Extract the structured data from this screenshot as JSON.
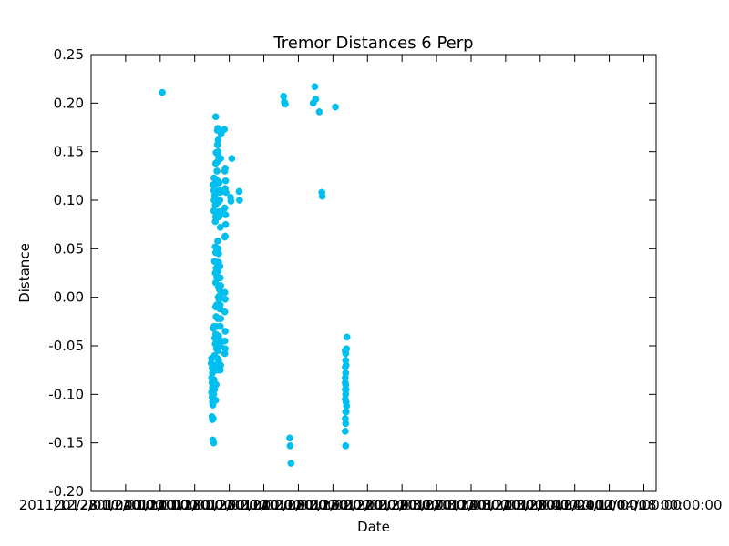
{
  "chart_data": {
    "type": "scatter",
    "title": "Tremor Distances 6 Perp",
    "xlabel": "Date",
    "ylabel": "Distance",
    "ylim": [
      -0.2,
      0.25
    ],
    "yticks": [
      "-0.20",
      "-0.15",
      "-0.10",
      "-0.05",
      "0.00",
      "0.05",
      "0.10",
      "0.15",
      "0.20",
      "0.25"
    ],
    "xticks": [
      "2011/12/28 00:00:00",
      "2012/01/04 00:00:00",
      "2012/01/11 00:00:00",
      "2012/01/18 00:00:00",
      "2012/01/25 00:00:00",
      "2012/02/01 00:00:00",
      "2012/02/08 00:00:00",
      "2012/02/15 00:00:00",
      "2012/02/22 00:00:00",
      "2012/02/29 00:00:00",
      "2012/03/07 00:00:00",
      "2012/03/14 00:00:00",
      "2012/03/21 00:00:00",
      "2012/03/28 00:00:00",
      "2012/04/04 00:00:00",
      "2012/04/11 00:00:00",
      "2012/04/18 00:00:00"
    ],
    "marker_color": "#00bfef",
    "grid": false,
    "points": [
      [
        "2012/01/11 10:00",
        0.211
      ],
      [
        "2012/01/21 12:00",
        -0.123
      ],
      [
        "2012/01/21 14:00",
        -0.126
      ],
      [
        "2012/01/21 18:00",
        -0.125
      ],
      [
        "2012/01/21 16:00",
        -0.147
      ],
      [
        "2012/01/21 20:00",
        -0.15
      ],
      [
        "2012/01/21 08:00",
        -0.068
      ],
      [
        "2012/01/21 10:00",
        -0.063
      ],
      [
        "2012/01/21 12:00",
        -0.073
      ],
      [
        "2012/01/21 14:00",
        -0.078
      ],
      [
        "2012/01/21 10:00",
        -0.083
      ],
      [
        "2012/01/21 12:00",
        -0.088
      ],
      [
        "2012/01/21 14:00",
        -0.093
      ],
      [
        "2012/01/21 10:00",
        -0.098
      ],
      [
        "2012/01/21 12:00",
        -0.103
      ],
      [
        "2012/01/21 14:00",
        -0.108
      ],
      [
        "2012/01/21 16:00",
        -0.111
      ],
      [
        "2012/01/21 20:00",
        -0.1
      ],
      [
        "2012/01/22 00:00",
        -0.095
      ],
      [
        "2012/01/21 22:00",
        -0.085
      ],
      [
        "2012/01/22 02:00",
        -0.07
      ],
      [
        "2012/01/22 00:00",
        -0.06
      ],
      [
        "2012/01/21 18:00",
        -0.032
      ],
      [
        "2012/01/21 22:00",
        -0.03
      ],
      [
        "2012/01/22 02:00",
        -0.042
      ],
      [
        "2012/01/22 04:00",
        -0.048
      ],
      [
        "2012/01/22 06:00",
        -0.106
      ],
      [
        "2012/01/22 08:00",
        -0.09
      ],
      [
        "2012/01/22 10:00",
        -0.053
      ],
      [
        "2012/01/22 06:00",
        -0.038
      ],
      [
        "2012/01/22 00:00",
        0.037
      ],
      [
        "2012/01/22 06:00",
        0.046
      ],
      [
        "2012/01/22 04:00",
        0.052
      ],
      [
        "2012/01/22 04:00",
        0.025
      ],
      [
        "2012/01/22 06:00",
        0.015
      ],
      [
        "2012/01/22 08:00",
        0.03
      ],
      [
        "2012/01/22 06:00",
        -0.01
      ],
      [
        "2012/01/22 10:00",
        -0.008
      ],
      [
        "2012/01/22 08:00",
        -0.02
      ],
      [
        "2012/01/22 10:00",
        -0.03
      ],
      [
        "2012/01/22 12:00",
        0.02
      ],
      [
        "2012/01/21 20:00",
        0.089
      ],
      [
        "2012/01/21 22:00",
        0.1
      ],
      [
        "2012/01/21 20:00",
        0.11
      ],
      [
        "2012/01/21 18:00",
        0.116
      ],
      [
        "2012/01/21 22:00",
        0.123
      ],
      [
        "2012/01/22 02:00",
        0.105
      ],
      [
        "2012/01/22 04:00",
        0.078
      ],
      [
        "2012/01/22 06:00",
        0.083
      ],
      [
        "2012/01/22 04:00",
        0.095
      ],
      [
        "2012/01/22 08:00",
        0.117
      ],
      [
        "2012/01/22 04:00",
        0.122
      ],
      [
        "2012/01/22 06:00",
        0.138
      ],
      [
        "2012/01/22 08:00",
        0.149
      ],
      [
        "2012/01/22 12:00",
        0.13
      ],
      [
        "2012/01/22 06:00",
        0.186
      ],
      [
        "2012/01/22 14:00",
        0.172
      ],
      [
        "2012/01/22 16:00",
        0.174
      ],
      [
        "2012/01/22 18:00",
        0.162
      ],
      [
        "2012/01/22 14:00",
        0.157
      ],
      [
        "2012/01/22 18:00",
        0.15
      ],
      [
        "2012/01/22 20:00",
        0.145
      ],
      [
        "2012/01/22 16:00",
        0.14
      ],
      [
        "2012/01/22 14:00",
        0.12
      ],
      [
        "2012/01/22 16:00",
        0.11
      ],
      [
        "2012/01/22 12:00",
        0.1
      ],
      [
        "2012/01/22 20:00",
        0.098
      ],
      [
        "2012/01/22 22:00",
        0.118
      ],
      [
        "2012/01/22 18:00",
        0.088
      ],
      [
        "2012/01/22 22:00",
        0.083
      ],
      [
        "2012/01/22 16:00",
        0.058
      ],
      [
        "2012/01/22 18:00",
        0.05
      ],
      [
        "2012/01/22 20:00",
        0.045
      ],
      [
        "2012/01/22 14:00",
        0.036
      ],
      [
        "2012/01/22 20:00",
        0.036
      ],
      [
        "2012/01/22 16:00",
        0.02
      ],
      [
        "2012/01/22 18:00",
        0.027
      ],
      [
        "2012/01/22 20:00",
        0.01
      ],
      [
        "2012/01/22 18:00",
        0.0
      ],
      [
        "2012/01/22 22:00",
        -0.002
      ],
      [
        "2012/01/23 00:00",
        0.008
      ],
      [
        "2012/01/22 16:00",
        -0.022
      ],
      [
        "2012/01/22 14:00",
        -0.04
      ],
      [
        "2012/01/22 18:00",
        -0.055
      ],
      [
        "2012/01/22 20:00",
        -0.04
      ],
      [
        "2012/01/22 14:00",
        -0.063
      ],
      [
        "2012/01/22 16:00",
        -0.075
      ],
      [
        "2012/01/22 20:00",
        -0.065
      ],
      [
        "2012/01/23 02:00",
        0.1
      ],
      [
        "2012/01/23 04:00",
        0.108
      ],
      [
        "2012/01/23 06:00",
        0.11
      ],
      [
        "2012/01/23 08:00",
        0.088
      ],
      [
        "2012/01/23 04:00",
        0.072
      ],
      [
        "2012/01/23 06:00",
        0.143
      ],
      [
        "2012/01/23 08:00",
        0.168
      ],
      [
        "2012/01/23 02:00",
        0.032
      ],
      [
        "2012/01/23 04:00",
        0.02
      ],
      [
        "2012/01/23 06:00",
        0.012
      ],
      [
        "2012/01/23 02:00",
        0.002
      ],
      [
        "2012/01/23 04:00",
        -0.008
      ],
      [
        "2012/01/23 02:00",
        -0.012
      ],
      [
        "2012/01/23 06:00",
        -0.022
      ],
      [
        "2012/01/23 04:00",
        -0.03
      ],
      [
        "2012/01/23 06:00",
        -0.045
      ],
      [
        "2012/01/23 04:00",
        -0.05
      ],
      [
        "2012/01/23 06:00",
        -0.07
      ],
      [
        "2012/01/23 04:00",
        -0.075
      ],
      [
        "2012/01/24 00:00",
        0.173
      ],
      [
        "2012/01/24 04:00",
        0.133
      ],
      [
        "2012/01/24 02:00",
        0.13
      ],
      [
        "2012/01/24 06:00",
        0.12
      ],
      [
        "2012/01/24 04:00",
        0.112
      ],
      [
        "2012/01/24 08:00",
        0.108
      ],
      [
        "2012/01/24 02:00",
        0.092
      ],
      [
        "2012/01/24 06:00",
        0.085
      ],
      [
        "2012/01/24 04:00",
        0.063
      ],
      [
        "2012/01/24 02:00",
        0.062
      ],
      [
        "2012/01/24 06:00",
        0.075
      ],
      [
        "2012/01/24 02:00",
        0.005
      ],
      [
        "2012/01/24 04:00",
        -0.002
      ],
      [
        "2012/01/24 02:00",
        -0.015
      ],
      [
        "2012/01/24 04:00",
        -0.035
      ],
      [
        "2012/01/24 02:00",
        -0.045
      ],
      [
        "2012/01/24 04:00",
        -0.053
      ],
      [
        "2012/01/24 02:00",
        -0.058
      ],
      [
        "2012/01/25 12:00",
        0.143
      ],
      [
        "2012/01/25 06:00",
        0.103
      ],
      [
        "2012/01/25 08:00",
        0.099
      ],
      [
        "2012/01/27 00:00",
        0.109
      ],
      [
        "2012/01/27 02:00",
        0.1
      ],
      [
        "2012/02/05 00:00",
        0.207
      ],
      [
        "2012/02/05 04:00",
        0.201
      ],
      [
        "2012/02/05 08:00",
        0.199
      ],
      [
        "2012/02/06 06:00",
        -0.145
      ],
      [
        "2012/02/06 08:00",
        -0.153
      ],
      [
        "2012/02/06 12:00",
        -0.171
      ],
      [
        "2012/02/11 00:00",
        0.2
      ],
      [
        "2012/02/11 08:00",
        0.217
      ],
      [
        "2012/02/11 12:00",
        0.204
      ],
      [
        "2012/02/12 06:00",
        0.191
      ],
      [
        "2012/02/12 18:00",
        0.108
      ],
      [
        "2012/02/12 20:00",
        0.104
      ],
      [
        "2012/02/15 12:00",
        0.196
      ],
      [
        "2012/02/17 12:00",
        -0.055
      ],
      [
        "2012/02/17 14:00",
        -0.065
      ],
      [
        "2012/02/17 12:00",
        -0.072
      ],
      [
        "2012/02/17 14:00",
        -0.078
      ],
      [
        "2012/02/17 12:00",
        -0.083
      ],
      [
        "2012/02/17 14:00",
        -0.09
      ],
      [
        "2012/02/17 12:00",
        -0.095
      ],
      [
        "2012/02/17 14:00",
        -0.1
      ],
      [
        "2012/02/17 12:00",
        -0.105
      ],
      [
        "2012/02/17 16:00",
        -0.108
      ],
      [
        "2012/02/17 18:00",
        -0.112
      ],
      [
        "2012/02/17 14:00",
        -0.118
      ],
      [
        "2012/02/17 12:00",
        -0.125
      ],
      [
        "2012/02/17 14:00",
        -0.13
      ],
      [
        "2012/02/17 12:00",
        -0.138
      ],
      [
        "2012/02/17 14:00",
        -0.153
      ],
      [
        "2012/02/17 18:00",
        -0.053
      ],
      [
        "2012/02/17 20:00",
        -0.041
      ],
      [
        "2012/02/17 16:00",
        -0.07
      ],
      [
        "2012/02/17 14:00",
        -0.058
      ],
      [
        "2012/02/17 16:00",
        -0.095
      ],
      [
        "2012/02/17 12:00",
        -0.088
      ],
      [
        "2012/02/17 16:00",
        -0.118
      ]
    ]
  }
}
